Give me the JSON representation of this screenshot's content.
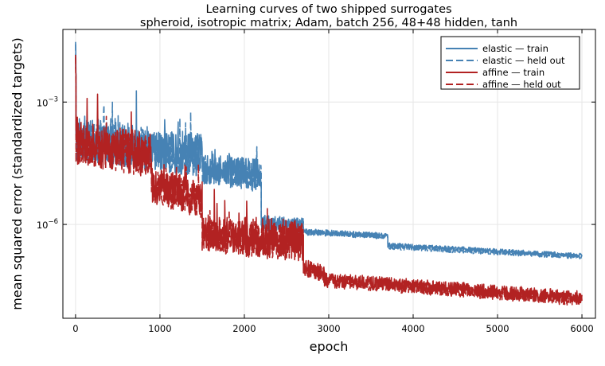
{
  "chart_data": {
    "type": "line",
    "title": "Learning curves of two shipped surrogates",
    "subtitle": "spheroid, isotropic matrix; Adam, batch 256, 48+48 hidden, tanh",
    "xlabel": "epoch",
    "ylabel": "mean squared error (standardized targets)",
    "xlim": [
      -150,
      6160
    ],
    "ylim_log10": [
      -8.3,
      -1.22
    ],
    "yscale": "log",
    "grid": true,
    "legend_position": "top-right",
    "x_ticks": [
      0,
      1000,
      2000,
      3000,
      4000,
      5000,
      6000
    ],
    "x_tick_labels": [
      "0",
      "1000",
      "2000",
      "3000",
      "4000",
      "5000",
      "6000"
    ],
    "y_ticks_log10": [
      -6,
      -3
    ],
    "y_tick_labels": [
      {
        "base": "10",
        "exp": "−6"
      },
      {
        "base": "10",
        "exp": "−3"
      }
    ],
    "series": [
      {
        "name": "elastic — train",
        "color": "#4682b4",
        "dash": "solid",
        "log10_segments": [
          {
            "x": [
              0,
              5
            ],
            "mid": [
              -1.6,
              -2.4
            ],
            "noise": 0.3
          },
          {
            "x": [
              5,
              1500
            ],
            "mid": [
              -3.9,
              -4.3
            ],
            "noise": 0.55
          },
          {
            "x": [
              1500,
              2200
            ],
            "mid": [
              -4.6,
              -4.8
            ],
            "noise": 0.4
          },
          {
            "x": [
              2200,
              2700
            ],
            "mid": [
              -5.95,
              -6.05
            ],
            "noise": 0.2
          },
          {
            "x": [
              2700,
              3700
            ],
            "mid": [
              -6.17,
              -6.28
            ],
            "noise": 0.07
          },
          {
            "x": [
              3700,
              6000
            ],
            "mid": [
              -6.5,
              -6.76
            ],
            "noise": 0.05
          }
        ]
      },
      {
        "name": "elastic — held out",
        "color": "#4682b4",
        "dash": "dashed",
        "log10_segments": [
          {
            "x": [
              0,
              5
            ],
            "mid": [
              -1.7,
              -2.5
            ],
            "noise": 0.3
          },
          {
            "x": [
              5,
              1500
            ],
            "mid": [
              -3.95,
              -4.35
            ],
            "noise": 0.5
          },
          {
            "x": [
              1500,
              2200
            ],
            "mid": [
              -4.65,
              -4.85
            ],
            "noise": 0.38
          },
          {
            "x": [
              2200,
              2700
            ],
            "mid": [
              -5.97,
              -6.07
            ],
            "noise": 0.18
          },
          {
            "x": [
              2700,
              3700
            ],
            "mid": [
              -6.2,
              -6.3
            ],
            "noise": 0.06
          },
          {
            "x": [
              3700,
              6000
            ],
            "mid": [
              -6.56,
              -6.8
            ],
            "noise": 0.05
          }
        ]
      },
      {
        "name": "affine — train",
        "color": "#b22222",
        "dash": "solid",
        "log10_segments": [
          {
            "x": [
              0,
              5
            ],
            "mid": [
              -2.0,
              -2.6
            ],
            "noise": 0.3
          },
          {
            "x": [
              5,
              900
            ],
            "mid": [
              -4.0,
              -4.3
            ],
            "noise": 0.55
          },
          {
            "x": [
              900,
              1500
            ],
            "mid": [
              -5.0,
              -5.4
            ],
            "noise": 0.45
          },
          {
            "x": [
              1500,
              2000
            ],
            "mid": [
              -6.2,
              -6.3
            ],
            "noise": 0.45
          },
          {
            "x": [
              2000,
              2700
            ],
            "mid": [
              -6.3,
              -6.4
            ],
            "noise": 0.5
          },
          {
            "x": [
              2700,
              2950
            ],
            "mid": [
              -7.05,
              -7.2
            ],
            "noise": 0.2
          },
          {
            "x": [
              2950,
              6000
            ],
            "mid": [
              -7.35,
              -7.8
            ],
            "noise": 0.17
          }
        ]
      },
      {
        "name": "affine — held out",
        "color": "#b22222",
        "dash": "dashed",
        "log10_segments": [
          {
            "x": [
              0,
              5
            ],
            "mid": [
              -2.1,
              -2.7
            ],
            "noise": 0.3
          },
          {
            "x": [
              5,
              900
            ],
            "mid": [
              -4.05,
              -4.35
            ],
            "noise": 0.5
          },
          {
            "x": [
              900,
              1500
            ],
            "mid": [
              -5.05,
              -5.45
            ],
            "noise": 0.42
          },
          {
            "x": [
              1500,
              2000
            ],
            "mid": [
              -6.25,
              -6.35
            ],
            "noise": 0.42
          },
          {
            "x": [
              2000,
              2700
            ],
            "mid": [
              -6.35,
              -6.45
            ],
            "noise": 0.45
          },
          {
            "x": [
              2700,
              2950
            ],
            "mid": [
              -7.1,
              -7.25
            ],
            "noise": 0.18
          },
          {
            "x": [
              2950,
              6000
            ],
            "mid": [
              -7.4,
              -7.85
            ],
            "noise": 0.15
          }
        ]
      }
    ]
  }
}
